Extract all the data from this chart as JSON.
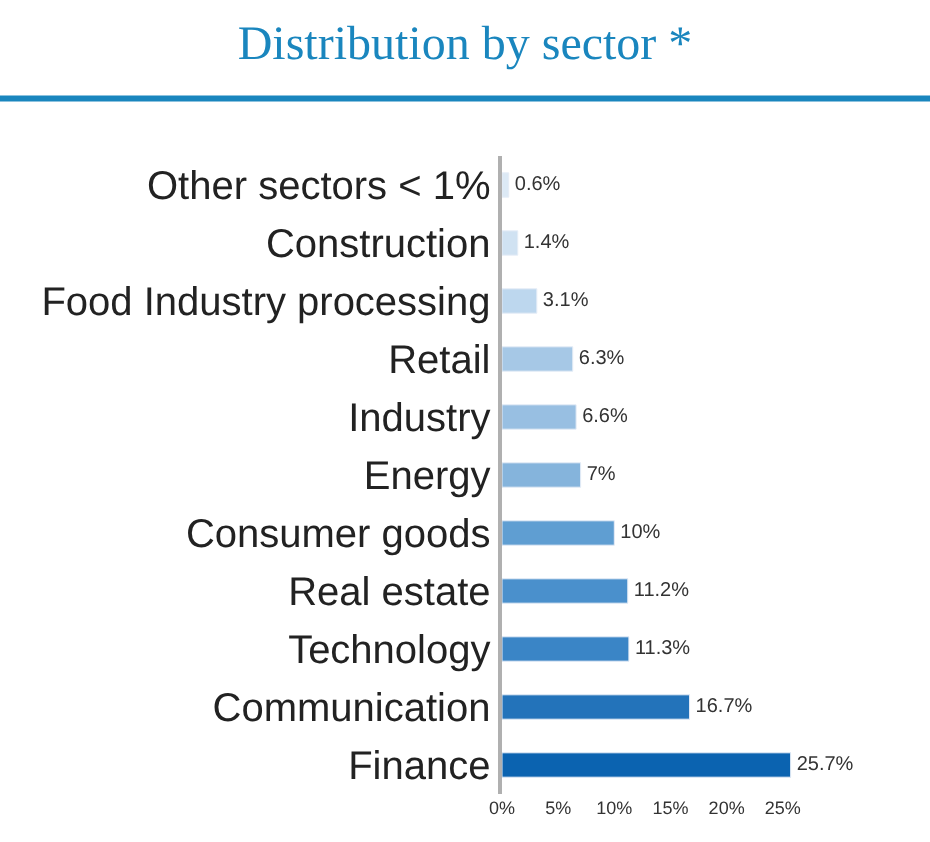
{
  "chart_data": {
    "type": "bar",
    "orientation": "horizontal",
    "title": "Distribution by sector *",
    "categories": [
      "Other sectors < 1%",
      "Construction",
      "Food Industry processing",
      "Retail",
      "Industry",
      "Energy",
      "Consumer goods",
      "Real estate",
      "Technology",
      "Communication",
      "Finance"
    ],
    "values": [
      0.6,
      1.4,
      3.1,
      6.3,
      6.6,
      7,
      10,
      11.2,
      11.3,
      16.7,
      25.7
    ],
    "value_labels": [
      "0.6%",
      "1.4%",
      "3.1%",
      "6.3%",
      "6.6%",
      "7%",
      "10%",
      "11.2%",
      "11.3%",
      "16.7%",
      "25.7%"
    ],
    "colors": [
      "#dce9f5",
      "#d0e2f2",
      "#bdd7ee",
      "#a6c8e6",
      "#98bfe2",
      "#85b4dc",
      "#5f9ed2",
      "#4a90cc",
      "#3a85c6",
      "#2373ba",
      "#0b63b0"
    ],
    "xlim": [
      0,
      26
    ],
    "xticks": [
      {
        "value": 0,
        "label": "0%"
      },
      {
        "value": 5,
        "label": "5%"
      },
      {
        "value": 10,
        "label": "10%"
      },
      {
        "value": 15,
        "label": "15%"
      },
      {
        "value": 20,
        "label": "20%"
      },
      {
        "value": 25,
        "label": "25%"
      }
    ],
    "legend": false
  }
}
